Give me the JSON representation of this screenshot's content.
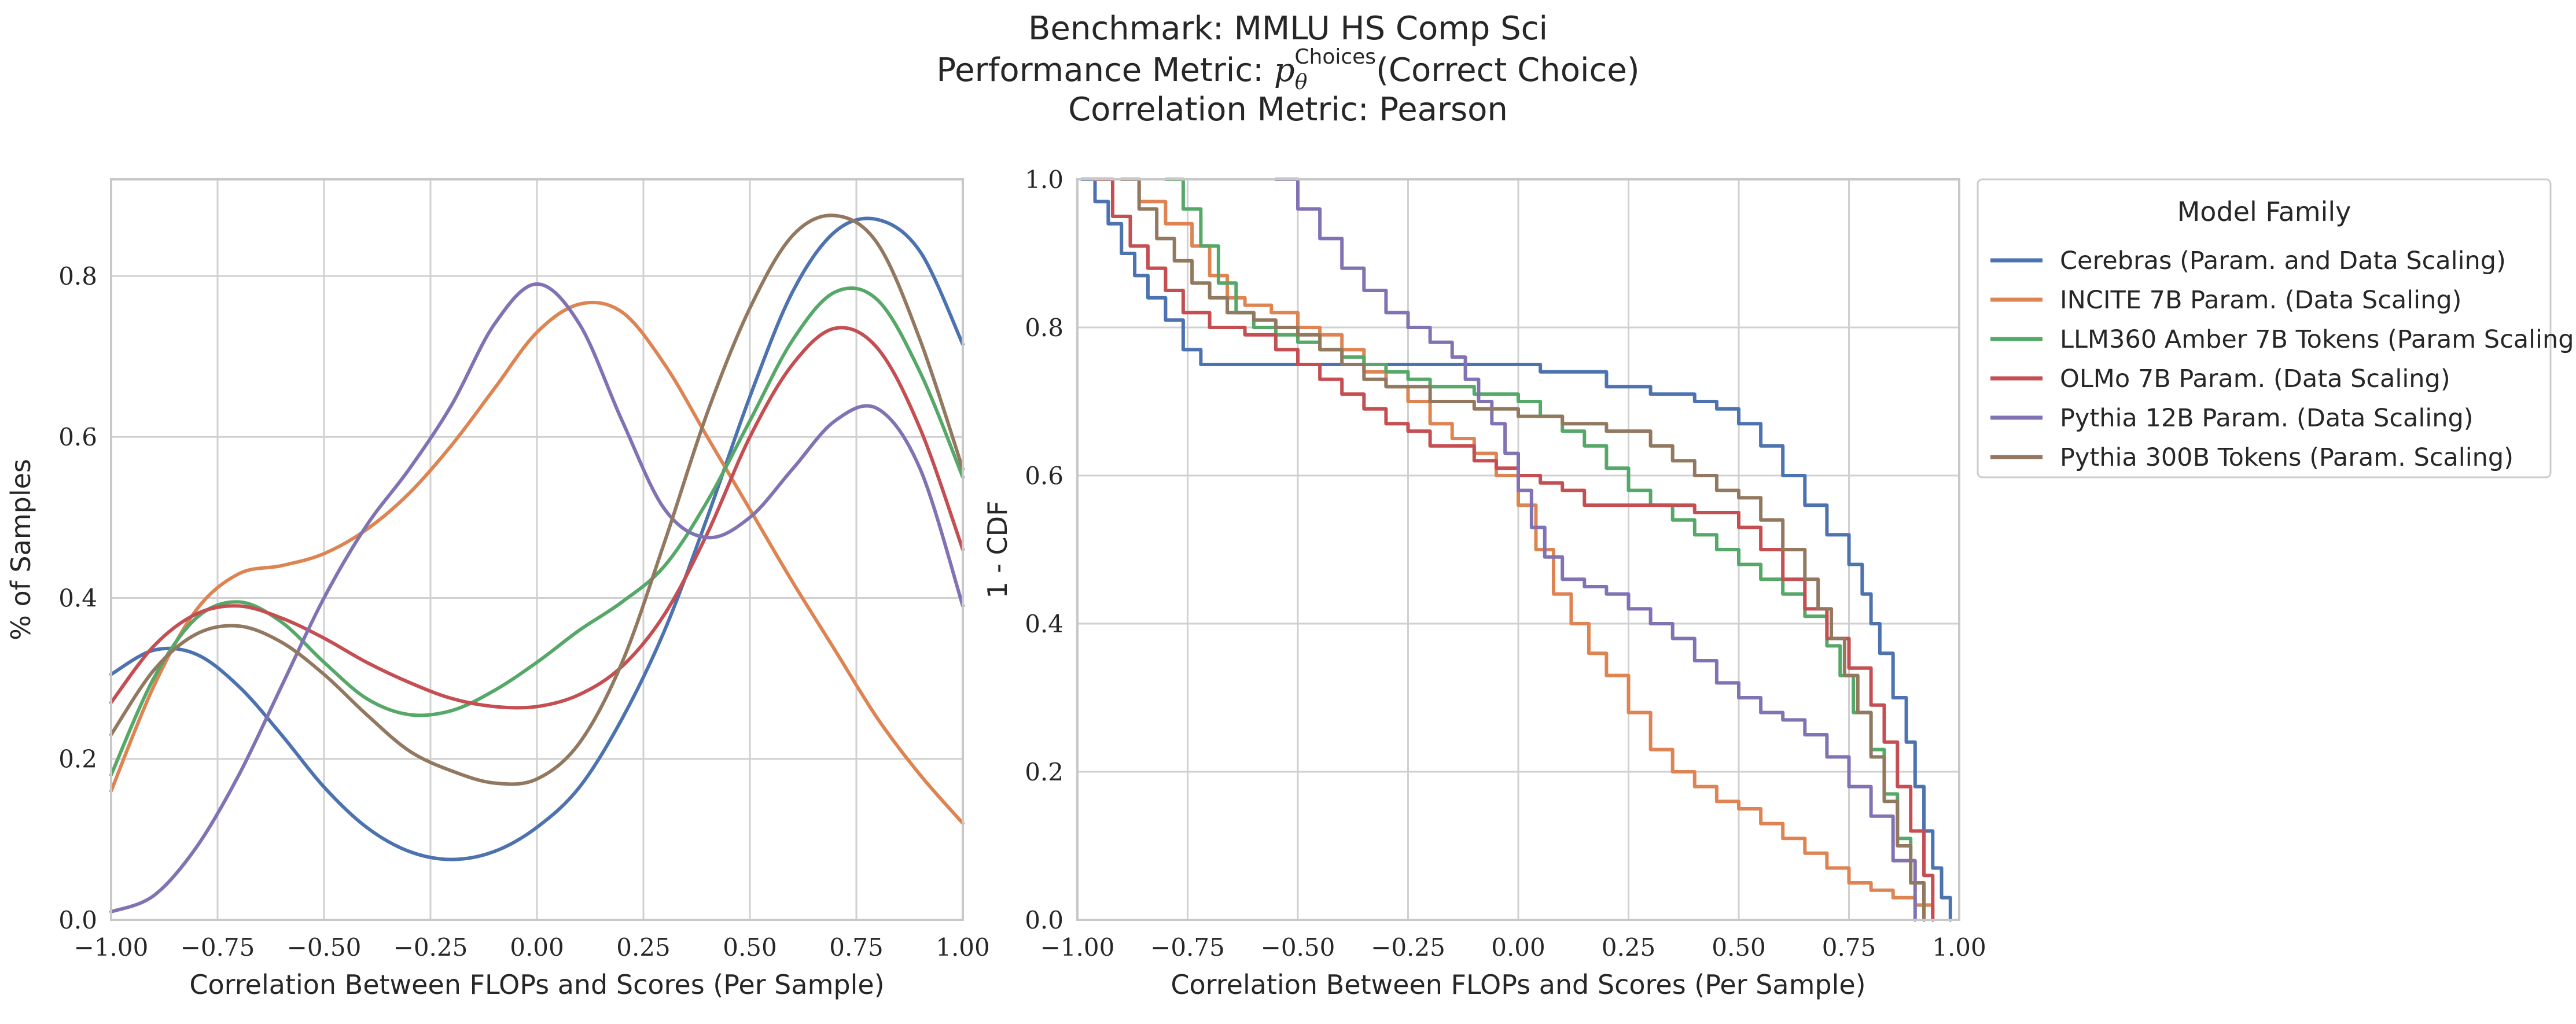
{
  "title": {
    "line1": "Benchmark: MMLU HS Comp Sci",
    "line2_prefix": "Performance Metric: ",
    "line2_symbol": "p",
    "line2_sub": "θ",
    "line2_sup": "Choices",
    "line2_suffix": "(Correct Choice)",
    "line3": "Correlation Metric: Pearson"
  },
  "colors": {
    "Cerebras (Param. and Data Scaling)": "#4c72b0",
    "INCITE 7B Param. (Data Scaling)": "#dd8452",
    "LLM360 Amber 7B Tokens (Param Scaling)": "#55a868",
    "OLMo 7B Param. (Data Scaling)": "#c44e52",
    "Pythia 12B Param. (Data Scaling)": "#8172b3",
    "Pythia 300B Tokens (Param. Scaling)": "#937860"
  },
  "legend": {
    "title": "Model Family",
    "entries": [
      "Cerebras (Param. and Data Scaling)",
      "INCITE 7B Param. (Data Scaling)",
      "LLM360 Amber 7B Tokens (Param Scaling)",
      "OLMo 7B Param. (Data Scaling)",
      "Pythia 12B Param. (Data Scaling)",
      "Pythia 300B Tokens (Param. Scaling)"
    ]
  },
  "chart_data": [
    {
      "type": "line",
      "xlabel": "Correlation Between FLOPs and Scores (Per Sample)",
      "ylabel": "% of Samples",
      "xlim": [
        -1.0,
        1.0
      ],
      "ylim": [
        0.0,
        0.92
      ],
      "xticks": [
        "−1.00",
        "−0.75",
        "−0.50",
        "−0.25",
        "0.00",
        "0.25",
        "0.50",
        "0.75",
        "1.00"
      ],
      "xtick_values": [
        -1.0,
        -0.75,
        -0.5,
        -0.25,
        0.0,
        0.25,
        0.5,
        0.75,
        1.0
      ],
      "yticks": [
        "0.0",
        "0.2",
        "0.4",
        "0.6",
        "0.8"
      ],
      "ytick_values": [
        0.0,
        0.2,
        0.4,
        0.6,
        0.8
      ],
      "grid": true,
      "series": [
        {
          "name": "Cerebras (Param. and Data Scaling)",
          "x": [
            -1.0,
            -0.9,
            -0.8,
            -0.7,
            -0.6,
            -0.5,
            -0.4,
            -0.3,
            -0.2,
            -0.1,
            0.0,
            0.1,
            0.2,
            0.3,
            0.4,
            0.5,
            0.6,
            0.7,
            0.8,
            0.9,
            1.0
          ],
          "y": [
            0.305,
            0.335,
            0.33,
            0.29,
            0.23,
            0.165,
            0.115,
            0.085,
            0.075,
            0.085,
            0.115,
            0.165,
            0.25,
            0.36,
            0.5,
            0.65,
            0.78,
            0.855,
            0.87,
            0.83,
            0.715
          ]
        },
        {
          "name": "INCITE 7B Param. (Data Scaling)",
          "x": [
            -1.0,
            -0.9,
            -0.8,
            -0.7,
            -0.6,
            -0.5,
            -0.4,
            -0.3,
            -0.2,
            -0.1,
            0.0,
            0.1,
            0.2,
            0.3,
            0.4,
            0.5,
            0.6,
            0.7,
            0.8,
            0.9,
            1.0
          ],
          "y": [
            0.16,
            0.29,
            0.385,
            0.43,
            0.44,
            0.455,
            0.485,
            0.53,
            0.59,
            0.66,
            0.73,
            0.765,
            0.755,
            0.69,
            0.6,
            0.51,
            0.42,
            0.335,
            0.25,
            0.18,
            0.12
          ]
        },
        {
          "name": "LLM360 Amber 7B Tokens (Param Scaling)",
          "x": [
            -1.0,
            -0.9,
            -0.8,
            -0.7,
            -0.6,
            -0.5,
            -0.4,
            -0.3,
            -0.2,
            -0.1,
            0.0,
            0.1,
            0.2,
            0.3,
            0.4,
            0.5,
            0.6,
            0.7,
            0.8,
            0.9,
            1.0
          ],
          "y": [
            0.18,
            0.3,
            0.375,
            0.395,
            0.37,
            0.32,
            0.275,
            0.255,
            0.26,
            0.285,
            0.32,
            0.36,
            0.395,
            0.44,
            0.52,
            0.62,
            0.72,
            0.78,
            0.77,
            0.68,
            0.55
          ]
        },
        {
          "name": "OLMo 7B Param. (Data Scaling)",
          "x": [
            -1.0,
            -0.9,
            -0.8,
            -0.7,
            -0.6,
            -0.5,
            -0.4,
            -0.3,
            -0.2,
            -0.1,
            0.0,
            0.1,
            0.2,
            0.3,
            0.4,
            0.5,
            0.6,
            0.7,
            0.8,
            0.9,
            1.0
          ],
          "y": [
            0.27,
            0.34,
            0.38,
            0.39,
            0.375,
            0.35,
            0.32,
            0.295,
            0.275,
            0.265,
            0.265,
            0.28,
            0.315,
            0.38,
            0.48,
            0.6,
            0.69,
            0.735,
            0.71,
            0.61,
            0.46
          ]
        },
        {
          "name": "Pythia 12B Param. (Data Scaling)",
          "x": [
            -1.0,
            -0.9,
            -0.8,
            -0.7,
            -0.6,
            -0.5,
            -0.4,
            -0.3,
            -0.2,
            -0.1,
            0.0,
            0.1,
            0.2,
            0.3,
            0.4,
            0.5,
            0.6,
            0.7,
            0.8,
            0.9,
            1.0
          ],
          "y": [
            0.01,
            0.03,
            0.09,
            0.18,
            0.29,
            0.4,
            0.49,
            0.56,
            0.64,
            0.74,
            0.79,
            0.74,
            0.62,
            0.51,
            0.475,
            0.5,
            0.56,
            0.62,
            0.635,
            0.56,
            0.39
          ]
        },
        {
          "name": "Pythia 300B Tokens (Param. Scaling)",
          "x": [
            -1.0,
            -0.9,
            -0.8,
            -0.7,
            -0.6,
            -0.5,
            -0.4,
            -0.3,
            -0.2,
            -0.1,
            0.0,
            0.1,
            0.2,
            0.3,
            0.4,
            0.5,
            0.6,
            0.7,
            0.8,
            0.9,
            1.0
          ],
          "y": [
            0.23,
            0.31,
            0.355,
            0.365,
            0.345,
            0.305,
            0.255,
            0.21,
            0.185,
            0.17,
            0.175,
            0.22,
            0.32,
            0.47,
            0.63,
            0.76,
            0.85,
            0.875,
            0.84,
            0.72,
            0.56
          ]
        }
      ]
    },
    {
      "type": "line",
      "xlabel": "Correlation Between FLOPs and Scores (Per Sample)",
      "ylabel": "1 - CDF",
      "xlim": [
        -1.0,
        1.0
      ],
      "ylim": [
        0.0,
        1.0
      ],
      "xticks": [
        "−1.00",
        "−0.75",
        "−0.50",
        "−0.25",
        "0.00",
        "0.25",
        "0.50",
        "0.75",
        "1.00"
      ],
      "xtick_values": [
        -1.0,
        -0.75,
        -0.5,
        -0.25,
        0.0,
        0.25,
        0.5,
        0.75,
        1.0
      ],
      "yticks": [
        "0.0",
        "0.2",
        "0.4",
        "0.6",
        "0.8",
        "1.0"
      ],
      "ytick_values": [
        0.0,
        0.2,
        0.4,
        0.6,
        0.8,
        1.0
      ],
      "grid": true,
      "step": true,
      "series": [
        {
          "name": "Cerebras (Param. and Data Scaling)",
          "x": [
            -0.99,
            -0.96,
            -0.93,
            -0.9,
            -0.87,
            -0.84,
            -0.8,
            -0.76,
            -0.72,
            -0.68,
            -0.6,
            -0.5,
            -0.3,
            -0.1,
            0.05,
            0.2,
            0.3,
            0.4,
            0.45,
            0.5,
            0.55,
            0.6,
            0.65,
            0.7,
            0.75,
            0.78,
            0.8,
            0.82,
            0.85,
            0.88,
            0.9,
            0.92,
            0.94,
            0.96,
            0.98
          ],
          "y": [
            1.0,
            0.97,
            0.94,
            0.9,
            0.87,
            0.84,
            0.81,
            0.77,
            0.75,
            0.75,
            0.75,
            0.75,
            0.75,
            0.75,
            0.74,
            0.72,
            0.71,
            0.7,
            0.69,
            0.67,
            0.64,
            0.6,
            0.56,
            0.52,
            0.48,
            0.44,
            0.4,
            0.36,
            0.3,
            0.24,
            0.18,
            0.12,
            0.07,
            0.03,
            0.0
          ]
        },
        {
          "name": "INCITE 7B Param. (Data Scaling)",
          "x": [
            -0.9,
            -0.86,
            -0.8,
            -0.74,
            -0.7,
            -0.66,
            -0.62,
            -0.56,
            -0.5,
            -0.45,
            -0.4,
            -0.35,
            -0.3,
            -0.25,
            -0.2,
            -0.15,
            -0.1,
            -0.05,
            0.0,
            0.04,
            0.08,
            0.12,
            0.16,
            0.2,
            0.25,
            0.3,
            0.35,
            0.4,
            0.45,
            0.5,
            0.55,
            0.6,
            0.65,
            0.7,
            0.75,
            0.8,
            0.85,
            0.9,
            0.94
          ],
          "y": [
            1.0,
            0.97,
            0.94,
            0.91,
            0.87,
            0.84,
            0.83,
            0.82,
            0.8,
            0.79,
            0.77,
            0.74,
            0.72,
            0.7,
            0.67,
            0.65,
            0.63,
            0.6,
            0.56,
            0.5,
            0.44,
            0.4,
            0.36,
            0.33,
            0.28,
            0.23,
            0.2,
            0.18,
            0.16,
            0.15,
            0.13,
            0.11,
            0.09,
            0.07,
            0.05,
            0.04,
            0.03,
            0.02,
            0.0
          ]
        },
        {
          "name": "LLM360 Amber 7B Tokens (Param Scaling)",
          "x": [
            -0.8,
            -0.76,
            -0.72,
            -0.68,
            -0.64,
            -0.6,
            -0.55,
            -0.5,
            -0.45,
            -0.4,
            -0.35,
            -0.3,
            -0.25,
            -0.2,
            -0.1,
            0.0,
            0.05,
            0.1,
            0.15,
            0.2,
            0.25,
            0.3,
            0.35,
            0.4,
            0.45,
            0.5,
            0.55,
            0.6,
            0.65,
            0.7,
            0.73,
            0.76,
            0.8,
            0.83,
            0.86,
            0.89,
            0.92
          ],
          "y": [
            1.0,
            0.96,
            0.91,
            0.86,
            0.82,
            0.8,
            0.79,
            0.78,
            0.77,
            0.76,
            0.75,
            0.74,
            0.73,
            0.72,
            0.71,
            0.7,
            0.68,
            0.66,
            0.64,
            0.61,
            0.58,
            0.56,
            0.54,
            0.52,
            0.5,
            0.48,
            0.46,
            0.44,
            0.41,
            0.37,
            0.33,
            0.28,
            0.23,
            0.17,
            0.11,
            0.05,
            0.0
          ]
        },
        {
          "name": "OLMo 7B Param. (Data Scaling)",
          "x": [
            -0.96,
            -0.92,
            -0.88,
            -0.84,
            -0.8,
            -0.76,
            -0.7,
            -0.62,
            -0.55,
            -0.5,
            -0.45,
            -0.4,
            -0.35,
            -0.3,
            -0.25,
            -0.2,
            -0.1,
            -0.05,
            0.0,
            0.05,
            0.1,
            0.15,
            0.2,
            0.3,
            0.4,
            0.5,
            0.55,
            0.6,
            0.65,
            0.7,
            0.75,
            0.8,
            0.83,
            0.86,
            0.89,
            0.92,
            0.94
          ],
          "y": [
            1.0,
            0.95,
            0.91,
            0.88,
            0.85,
            0.82,
            0.8,
            0.79,
            0.77,
            0.75,
            0.73,
            0.71,
            0.69,
            0.67,
            0.66,
            0.64,
            0.62,
            0.61,
            0.6,
            0.59,
            0.58,
            0.56,
            0.56,
            0.56,
            0.55,
            0.53,
            0.5,
            0.46,
            0.42,
            0.38,
            0.34,
            0.29,
            0.24,
            0.18,
            0.12,
            0.06,
            0.0
          ]
        },
        {
          "name": "Pythia 12B Param. (Data Scaling)",
          "x": [
            -0.55,
            -0.5,
            -0.45,
            -0.4,
            -0.35,
            -0.3,
            -0.25,
            -0.2,
            -0.15,
            -0.12,
            -0.09,
            -0.06,
            -0.03,
            0.0,
            0.03,
            0.06,
            0.1,
            0.15,
            0.2,
            0.25,
            0.3,
            0.35,
            0.4,
            0.45,
            0.5,
            0.55,
            0.6,
            0.65,
            0.7,
            0.75,
            0.8,
            0.85,
            0.9
          ],
          "y": [
            1.0,
            0.96,
            0.92,
            0.88,
            0.85,
            0.82,
            0.8,
            0.78,
            0.76,
            0.73,
            0.7,
            0.67,
            0.63,
            0.58,
            0.53,
            0.49,
            0.46,
            0.45,
            0.44,
            0.42,
            0.4,
            0.38,
            0.35,
            0.32,
            0.3,
            0.28,
            0.27,
            0.25,
            0.22,
            0.18,
            0.14,
            0.08,
            0.0
          ]
        },
        {
          "name": "Pythia 300B Tokens (Param. Scaling)",
          "x": [
            -0.9,
            -0.86,
            -0.82,
            -0.78,
            -0.74,
            -0.7,
            -0.66,
            -0.6,
            -0.55,
            -0.5,
            -0.45,
            -0.4,
            -0.35,
            -0.3,
            -0.2,
            -0.1,
            0.0,
            0.1,
            0.2,
            0.3,
            0.35,
            0.4,
            0.45,
            0.5,
            0.55,
            0.6,
            0.65,
            0.68,
            0.71,
            0.74,
            0.77,
            0.8,
            0.83,
            0.86,
            0.89,
            0.92
          ],
          "y": [
            1.0,
            0.96,
            0.92,
            0.89,
            0.86,
            0.84,
            0.82,
            0.81,
            0.8,
            0.79,
            0.77,
            0.75,
            0.73,
            0.72,
            0.7,
            0.69,
            0.68,
            0.67,
            0.66,
            0.64,
            0.62,
            0.6,
            0.58,
            0.57,
            0.54,
            0.5,
            0.46,
            0.42,
            0.38,
            0.33,
            0.28,
            0.22,
            0.16,
            0.1,
            0.05,
            0.0
          ]
        }
      ]
    }
  ]
}
